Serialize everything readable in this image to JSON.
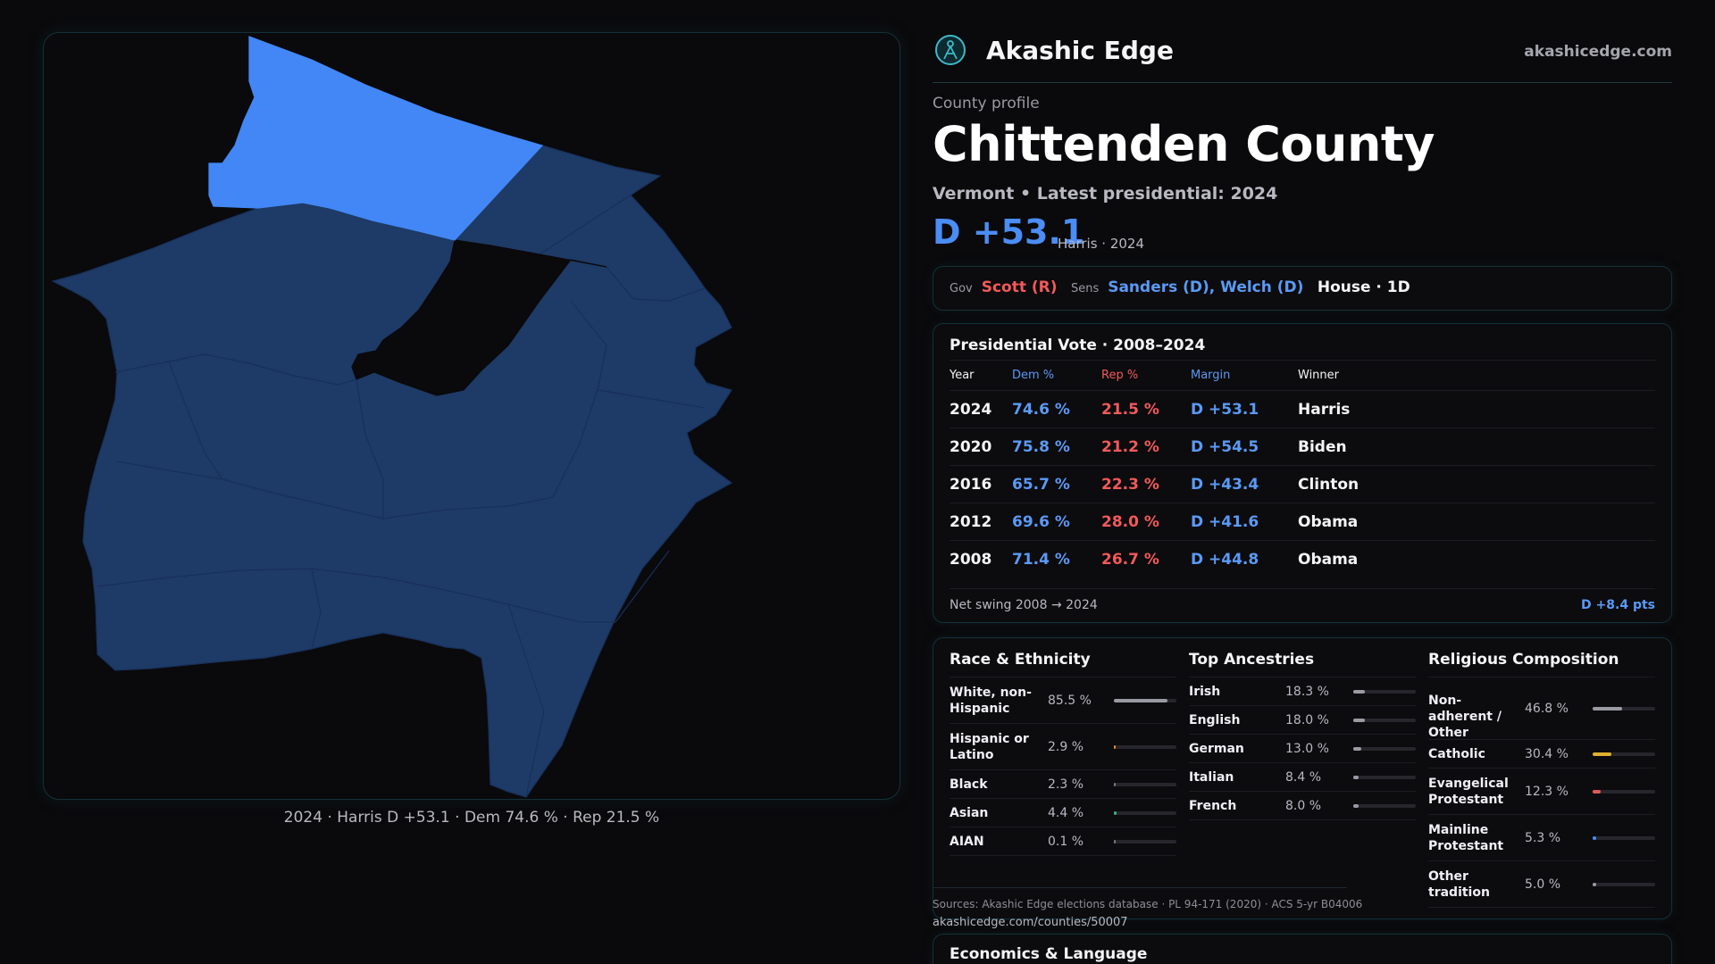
{
  "map": {
    "caption": "2024 · Harris D +53.1 · Dem 74.6 % · Rep 21.5 %",
    "colors": {
      "highlight": "#4287f5",
      "county": "#1e3a66",
      "border": "#17305a",
      "background": "#0a090b"
    }
  },
  "brand": {
    "name": "Akashic Edge",
    "site": "akashicedge.com",
    "logo_icon": "akashic-edge-logo-icon"
  },
  "profile": {
    "label": "County profile",
    "title": "Chittenden County",
    "subtitle": "Vermont • Latest presidential: 2024",
    "margin": "D +53.1",
    "margin_note": "Harris · 2024"
  },
  "officials": {
    "gov_label": "Gov",
    "gov": "Scott (R)",
    "sens_label": "Sens",
    "sens": "Sanders (D), Welch (D)",
    "house": "House · 1D"
  },
  "presidential": {
    "title": "Presidential Vote · 2008–2024",
    "headers": [
      "Year",
      "Dem %",
      "Rep %",
      "Margin",
      "Winner"
    ],
    "rows": [
      {
        "year": "2024",
        "dem": "74.6 %",
        "rep": "21.5 %",
        "margin": "D +53.1",
        "winner": "Harris"
      },
      {
        "year": "2020",
        "dem": "75.8 %",
        "rep": "21.2 %",
        "margin": "D +54.5",
        "winner": "Biden"
      },
      {
        "year": "2016",
        "dem": "65.7 %",
        "rep": "22.3 %",
        "margin": "D +43.4",
        "winner": "Clinton"
      },
      {
        "year": "2012",
        "dem": "69.6 %",
        "rep": "28.0 %",
        "margin": "D +41.6",
        "winner": "Obama"
      },
      {
        "year": "2008",
        "dem": "71.4 %",
        "rep": "26.7 %",
        "margin": "D +44.8",
        "winner": "Obama"
      }
    ],
    "swing_label": "Net swing 2008 → 2024",
    "swing_value": "D +8.4 pts"
  },
  "race": {
    "title": "Race & Ethnicity",
    "items": [
      {
        "label": "White, non-Hispanic",
        "value": "85.5 %",
        "pct": 85.5,
        "color": "#9a9aa3"
      },
      {
        "label": "Hispanic or Latino",
        "value": "2.9 %",
        "pct": 2.9,
        "color": "#e08a3a"
      },
      {
        "label": "Black",
        "value": "2.3 %",
        "pct": 2.3,
        "color": "#7a7a85"
      },
      {
        "label": "Asian",
        "value": "4.4 %",
        "pct": 4.4,
        "color": "#3ab07a"
      },
      {
        "label": "AIAN",
        "value": "0.1 %",
        "pct": 0.1,
        "color": "#7a7a85"
      }
    ]
  },
  "ancestry": {
    "title": "Top Ancestries",
    "items": [
      {
        "label": "Irish",
        "value": "18.3 %",
        "pct": 18.3,
        "color": "#9a9aa3"
      },
      {
        "label": "English",
        "value": "18.0 %",
        "pct": 18.0,
        "color": "#9a9aa3"
      },
      {
        "label": "German",
        "value": "13.0 %",
        "pct": 13.0,
        "color": "#9a9aa3"
      },
      {
        "label": "Italian",
        "value": "8.4 %",
        "pct": 8.4,
        "color": "#9a9aa3"
      },
      {
        "label": "French",
        "value": "8.0 %",
        "pct": 8.0,
        "color": "#9a9aa3"
      }
    ]
  },
  "religion": {
    "title": "Religious Composition",
    "items": [
      {
        "label": "Non-adherent / Other",
        "value": "46.8 %",
        "pct": 46.8,
        "color": "#9a9aa3"
      },
      {
        "label": "Catholic",
        "value": "30.4 %",
        "pct": 30.4,
        "color": "#e0b030"
      },
      {
        "label": "Evangelical Protestant",
        "value": "12.3 %",
        "pct": 12.3,
        "color": "#e05a5a"
      },
      {
        "label": "Mainline Protestant",
        "value": "5.3 %",
        "pct": 5.3,
        "color": "#4a8df5"
      },
      {
        "label": "Other tradition",
        "value": "5.0 %",
        "pct": 5.0,
        "color": "#9a9aa3"
      }
    ]
  },
  "sources": {
    "text": "Sources: Akashic Edge elections database · PL 94-171 (2020) · ACS 5-yr B04006",
    "url": "akashicedge.com/counties/50007"
  },
  "economics": {
    "title": "Economics & Language"
  }
}
